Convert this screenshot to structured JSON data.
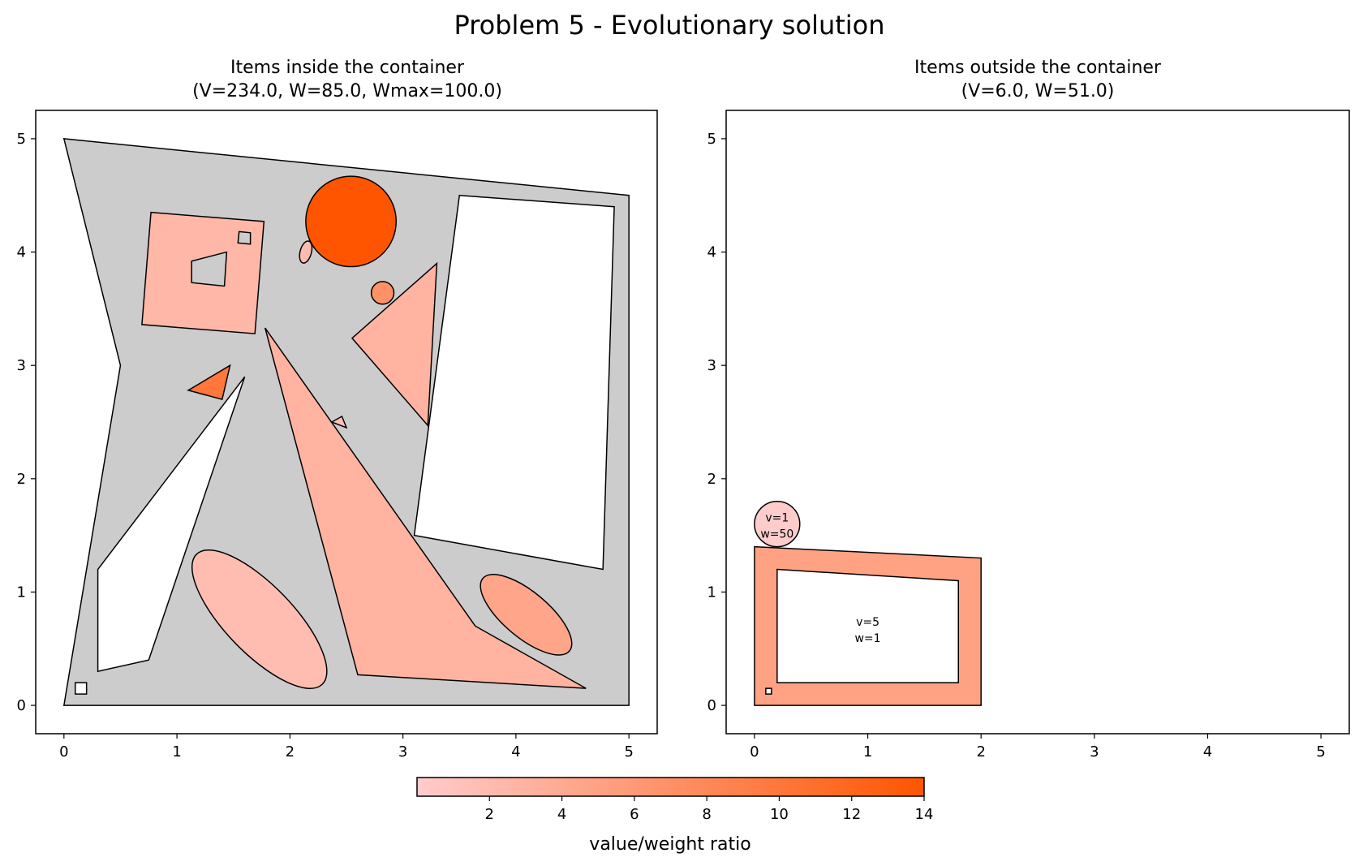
{
  "title": "Problem 5 - Evolutionary solution",
  "chart_data": [
    {
      "type": "polygon-packing",
      "title_line1": "Items inside the container",
      "title_line2": "(V=234.0, W=85.0, Wmax=100.0)",
      "xlim": [
        -0.25,
        5.25
      ],
      "ylim": [
        -0.25,
        5.25
      ],
      "xticks": [
        0,
        1,
        2,
        3,
        4,
        5
      ],
      "yticks": [
        0,
        1,
        2,
        3,
        4,
        5
      ],
      "container": {
        "color": "#cccccc",
        "points": [
          [
            0,
            5
          ],
          [
            0.5,
            3
          ],
          [
            0,
            0
          ],
          [
            5,
            0
          ],
          [
            5,
            4.5
          ],
          [
            0,
            5
          ]
        ],
        "holes": [
          [
            [
              3.5,
              4.5
            ],
            [
              4.87,
              4.4
            ],
            [
              4.77,
              1.2
            ],
            [
              3.1,
              1.5
            ]
          ],
          [
            [
              0.3,
              1.2
            ],
            [
              1.6,
              2.9
            ],
            [
              0.75,
              0.4
            ],
            [
              0.3,
              0.3
            ]
          ],
          [
            [
              0.1,
              0.2
            ],
            [
              0.2,
              0.2
            ],
            [
              0.2,
              0.1
            ],
            [
              0.1,
              0.1
            ]
          ]
        ]
      },
      "items": [
        {
          "shape": "polygon",
          "ratio": 2.5,
          "points": [
            [
              0.77,
              4.35
            ],
            [
              1.77,
              4.27
            ],
            [
              1.69,
              3.28
            ],
            [
              0.69,
              3.36
            ]
          ],
          "holes": [
            [
              [
                1.13,
                3.92
              ],
              [
                1.44,
                4.0
              ],
              [
                1.42,
                3.7
              ],
              [
                1.13,
                3.73
              ]
            ],
            [
              [
                1.55,
                4.18
              ],
              [
                1.65,
                4.17
              ],
              [
                1.65,
                4.07
              ],
              [
                1.54,
                4.08
              ]
            ]
          ]
        },
        {
          "shape": "circle",
          "ratio": 14.0,
          "cx": 2.54,
          "cy": 4.27,
          "r": 0.4
        },
        {
          "shape": "ellipse",
          "ratio": 2.0,
          "cx": 2.14,
          "cy": 4.0,
          "rx": 0.1,
          "ry": 0.05,
          "angle": 75
        },
        {
          "shape": "circle",
          "ratio": 7.0,
          "cx": 2.82,
          "cy": 3.64,
          "r": 0.1
        },
        {
          "shape": "polygon",
          "ratio": 3.0,
          "points": [
            [
              3.3,
              3.9
            ],
            [
              2.55,
              3.24
            ],
            [
              3.22,
              2.47
            ]
          ]
        },
        {
          "shape": "polygon",
          "ratio": 10.0,
          "points": [
            [
              1.1,
              2.78
            ],
            [
              1.47,
              3.0
            ],
            [
              1.4,
              2.7
            ]
          ]
        },
        {
          "shape": "polygon",
          "ratio": 3.0,
          "points": [
            [
              1.78,
              3.33
            ],
            [
              3.64,
              0.7
            ],
            [
              4.62,
              0.15
            ],
            [
              2.6,
              0.27
            ]
          ]
        },
        {
          "shape": "polygon",
          "ratio": 1.5,
          "points": [
            [
              2.37,
              2.5
            ],
            [
              2.46,
              2.55
            ],
            [
              2.5,
              2.45
            ]
          ]
        },
        {
          "shape": "ellipse",
          "ratio": 1.8,
          "cx": 1.73,
          "cy": 0.76,
          "rx": 0.8,
          "ry": 0.3,
          "angle": -46
        },
        {
          "shape": "ellipse",
          "ratio": 4.5,
          "cx": 4.09,
          "cy": 0.8,
          "rx": 0.5,
          "ry": 0.2,
          "angle": -40
        }
      ]
    },
    {
      "type": "polygon-packing",
      "title_line1": "Items outside the container",
      "title_line2": "(V=6.0, W=51.0)",
      "xlim": [
        -0.25,
        5.25
      ],
      "ylim": [
        -0.25,
        5.25
      ],
      "xticks": [
        0,
        1,
        2,
        3,
        4,
        5
      ],
      "yticks": [
        0,
        1,
        2,
        3,
        4,
        5
      ],
      "items": [
        {
          "shape": "circle",
          "ratio": 0.02,
          "cx": 0.2,
          "cy": 1.6,
          "r": 0.2,
          "label_line1": "v=1",
          "label_line2": "w=50"
        },
        {
          "shape": "polygon",
          "ratio": 5.0,
          "points": [
            [
              0,
              1.4
            ],
            [
              2,
              1.3
            ],
            [
              2,
              0
            ],
            [
              0,
              0
            ]
          ],
          "holes": [
            [
              [
                0.2,
                1.2
              ],
              [
                1.8,
                1.1
              ],
              [
                1.8,
                0.2
              ],
              [
                0.2,
                0.2
              ]
            ],
            [
              [
                0.1,
                0.15
              ],
              [
                0.15,
                0.15
              ],
              [
                0.15,
                0.1
              ],
              [
                0.1,
                0.1
              ]
            ]
          ],
          "label_x": 1.0,
          "label_y": 0.68,
          "label_line1": "v=5",
          "label_line2": "w=1"
        }
      ]
    }
  ],
  "colorbar": {
    "label": "value/weight ratio",
    "min": 0,
    "max": 14,
    "ticks": [
      2,
      4,
      6,
      8,
      10,
      12,
      14
    ],
    "color_low": "#ffcccc",
    "color_high": "#ff5500"
  }
}
